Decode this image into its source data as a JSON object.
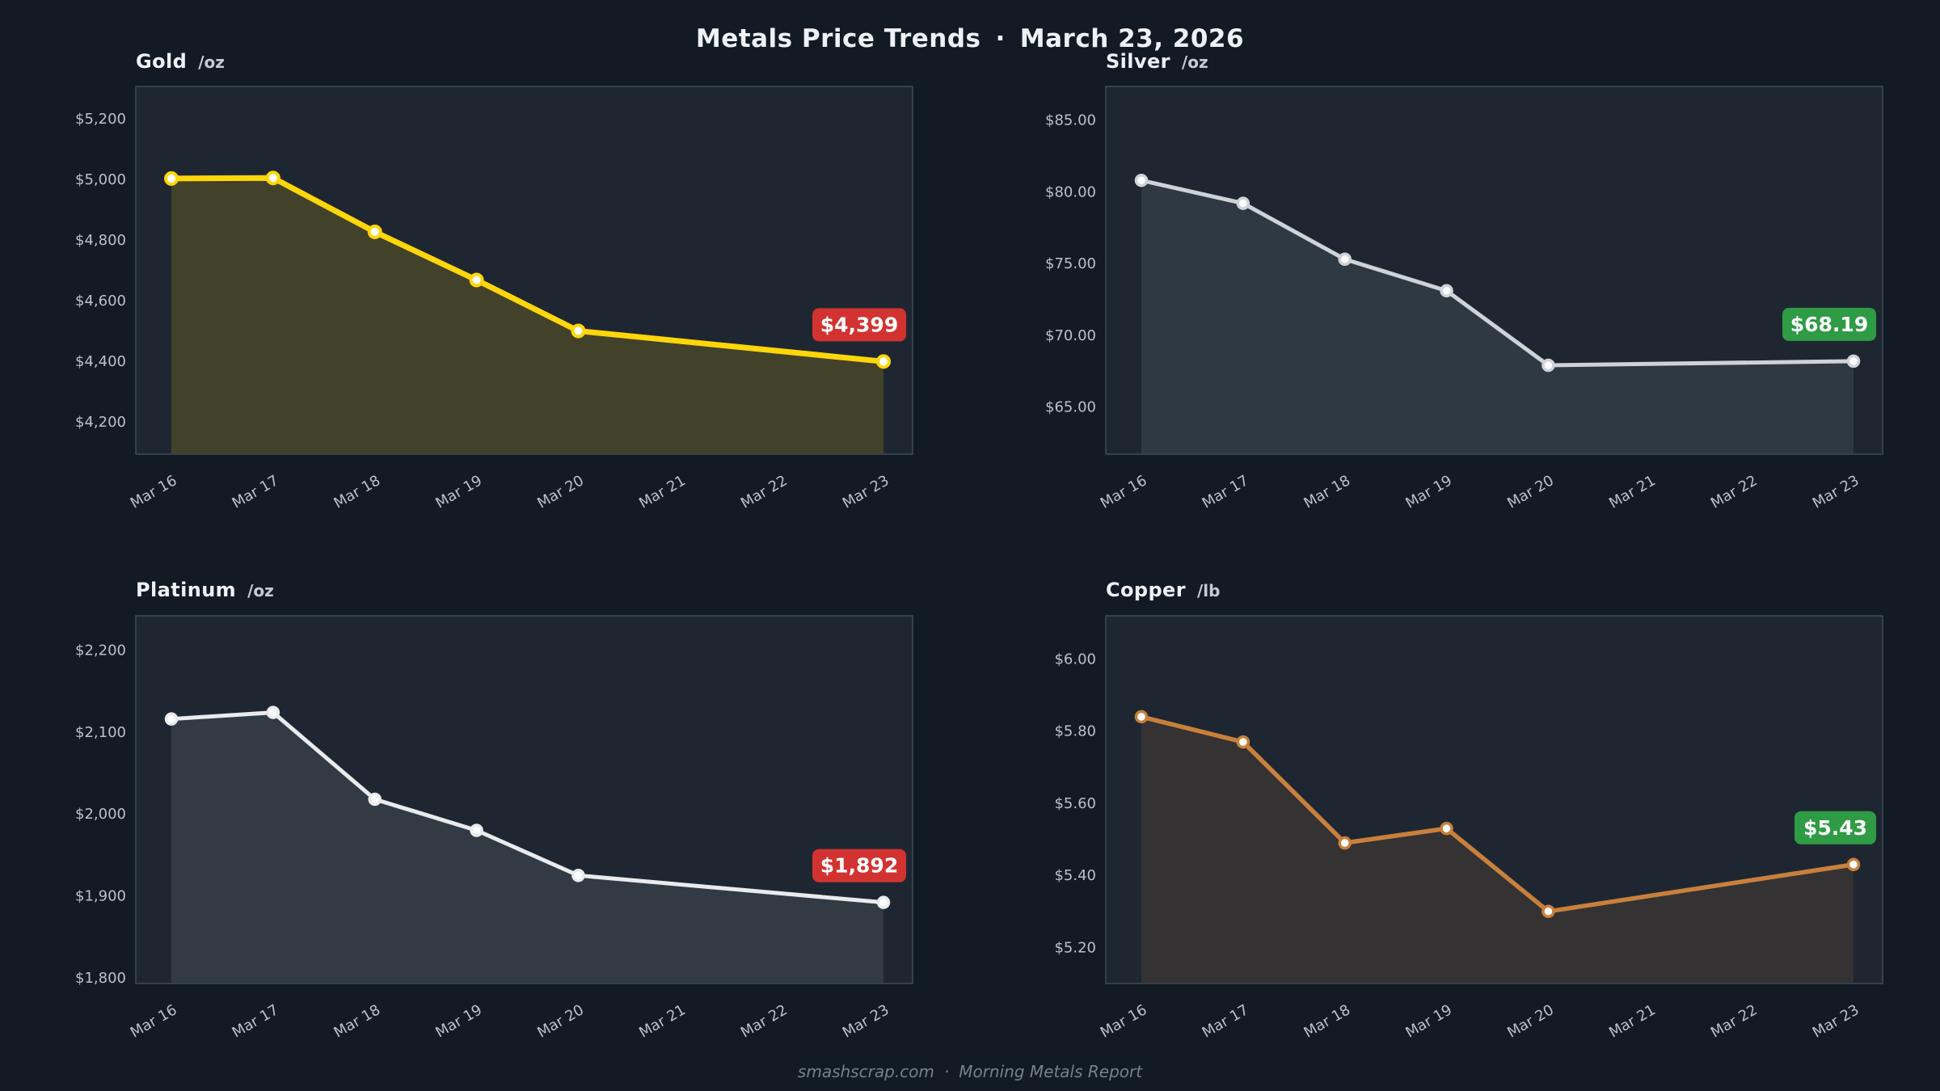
{
  "header": {
    "title": "Metals Price Trends",
    "separator": "·",
    "date": "March 23, 2026"
  },
  "footer": {
    "source": "smashscrap.com",
    "separator": "·",
    "report": "Morning Metals Report"
  },
  "x_labels": [
    "Mar 16",
    "Mar 17",
    "Mar 18",
    "Mar 19",
    "Mar 20",
    "Mar 21",
    "Mar 22",
    "Mar 23"
  ],
  "colors": {
    "page_bg": "#121a24",
    "panel_bg": "#1e2731",
    "panel_border": "#3e4a57",
    "tick_label": "#b9c2cc",
    "badge_down": "#d23331",
    "badge_up": "#2f9b44"
  },
  "chart_data": [
    {
      "id": "gold",
      "type": "line",
      "title": "Gold",
      "unit": "/oz",
      "line_color": "#ffd60a",
      "fill_color": "rgba(255,214,10,0.16)",
      "line_width": 7,
      "dot_radius": 7,
      "dot_stroke": 4,
      "ylim": [
        4093,
        5307
      ],
      "yticks": [
        {
          "label": "$5,200",
          "value": 5200
        },
        {
          "label": "$5,000",
          "value": 5000
        },
        {
          "label": "$4,800",
          "value": 4800
        },
        {
          "label": "$4,600",
          "value": 4600
        },
        {
          "label": "$4,400",
          "value": 4400
        },
        {
          "label": "$4,200",
          "value": 4200
        }
      ],
      "points": [
        {
          "day": "Mar 16",
          "value": 5003
        },
        {
          "day": "Mar 17",
          "value": 5005
        },
        {
          "day": "Mar 18",
          "value": 4827
        },
        {
          "day": "Mar 19",
          "value": 4668
        },
        {
          "day": "Mar 20",
          "value": 4500
        },
        {
          "day": "Mar 23",
          "value": 4399
        }
      ],
      "badge": {
        "text": "$4,399",
        "bg": "#d23331"
      }
    },
    {
      "id": "silver",
      "type": "line",
      "title": "Silver",
      "unit": "/oz",
      "line_color": "#ced3d9",
      "fill_color": "rgba(206,211,217,0.10)",
      "line_width": 5,
      "dot_radius": 6.5,
      "dot_stroke": 3.5,
      "ylim": [
        61.7,
        87.35
      ],
      "yticks": [
        {
          "label": "$85.00",
          "value": 85
        },
        {
          "label": "$80.00",
          "value": 80
        },
        {
          "label": "$75.00",
          "value": 75
        },
        {
          "label": "$70.00",
          "value": 70
        },
        {
          "label": "$65.00",
          "value": 65
        }
      ],
      "points": [
        {
          "day": "Mar 16",
          "value": 80.8
        },
        {
          "day": "Mar 17",
          "value": 79.2
        },
        {
          "day": "Mar 18",
          "value": 75.3
        },
        {
          "day": "Mar 19",
          "value": 73.1
        },
        {
          "day": "Mar 20",
          "value": 67.9
        },
        {
          "day": "Mar 23",
          "value": 68.19
        }
      ],
      "badge": {
        "text": "$68.19",
        "bg": "#2f9b44"
      }
    },
    {
      "id": "platinum",
      "type": "line",
      "title": "Platinum",
      "unit": "/oz",
      "line_color": "#e9ebee",
      "fill_color": "rgba(233,235,238,0.10)",
      "line_width": 5,
      "dot_radius": 6.5,
      "dot_stroke": 3.5,
      "ylim": [
        1793,
        2242
      ],
      "yticks": [
        {
          "label": "$2,200",
          "value": 2200
        },
        {
          "label": "$2,100",
          "value": 2100
        },
        {
          "label": "$2,000",
          "value": 2000
        },
        {
          "label": "$1,900",
          "value": 1900
        },
        {
          "label": "$1,800",
          "value": 1800
        }
      ],
      "points": [
        {
          "day": "Mar 16",
          "value": 2116
        },
        {
          "day": "Mar 17",
          "value": 2124
        },
        {
          "day": "Mar 18",
          "value": 2018
        },
        {
          "day": "Mar 19",
          "value": 1980
        },
        {
          "day": "Mar 20",
          "value": 1925
        },
        {
          "day": "Mar 23",
          "value": 1892
        }
      ],
      "badge": {
        "text": "$1,892",
        "bg": "#d23331"
      }
    },
    {
      "id": "copper",
      "type": "line",
      "title": "Copper",
      "unit": "/lb",
      "line_color": "#c8803c",
      "fill_color": "rgba(200,128,60,0.13)",
      "line_width": 5.5,
      "dot_radius": 6.5,
      "dot_stroke": 3.5,
      "ylim": [
        5.1,
        6.12
      ],
      "yticks": [
        {
          "label": "$6.00",
          "value": 6.0
        },
        {
          "label": "$5.80",
          "value": 5.8
        },
        {
          "label": "$5.60",
          "value": 5.6
        },
        {
          "label": "$5.40",
          "value": 5.4
        },
        {
          "label": "$5.20",
          "value": 5.2
        }
      ],
      "points": [
        {
          "day": "Mar 16",
          "value": 5.84
        },
        {
          "day": "Mar 17",
          "value": 5.77
        },
        {
          "day": "Mar 18",
          "value": 5.49
        },
        {
          "day": "Mar 19",
          "value": 5.53
        },
        {
          "day": "Mar 20",
          "value": 5.3
        },
        {
          "day": "Mar 23",
          "value": 5.43
        }
      ],
      "badge": {
        "text": "$5.43",
        "bg": "#2f9b44"
      }
    }
  ]
}
